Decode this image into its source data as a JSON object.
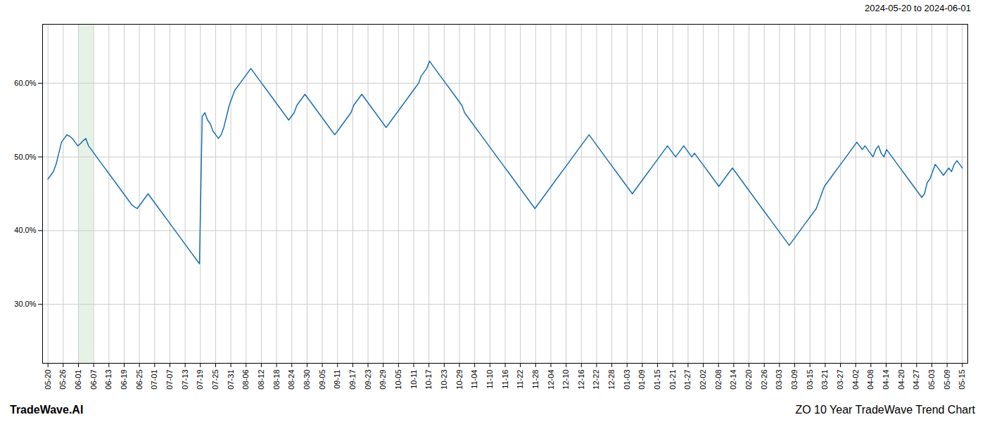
{
  "chart_data": {
    "type": "line",
    "title": "ZO 10 Year TradeWave Trend Chart",
    "subtitle": "2024-05-20 to 2024-06-01",
    "annotations": [
      "TradeWave.AI"
    ],
    "color": "#1a6faf",
    "grid": true,
    "xlim": [
      -2,
      340
    ],
    "xticks": [
      {
        "value": 0,
        "label": "05-20"
      },
      {
        "value": 5.63,
        "label": "05-26"
      },
      {
        "value": 11.27,
        "label": "06-01"
      },
      {
        "value": 16.9,
        "label": "06-07"
      },
      {
        "value": 22.53,
        "label": "06-13"
      },
      {
        "value": 28.17,
        "label": "06-19"
      },
      {
        "value": 33.8,
        "label": "06-25"
      },
      {
        "value": 39.43,
        "label": "07-01"
      },
      {
        "value": 45.07,
        "label": "07-07"
      },
      {
        "value": 50.7,
        "label": "07-13"
      },
      {
        "value": 56.33,
        "label": "07-19"
      },
      {
        "value": 61.97,
        "label": "07-25"
      },
      {
        "value": 67.6,
        "label": "07-31"
      },
      {
        "value": 73.23,
        "label": "08-06"
      },
      {
        "value": 78.87,
        "label": "08-12"
      },
      {
        "value": 84.5,
        "label": "08-18"
      },
      {
        "value": 90.13,
        "label": "08-24"
      },
      {
        "value": 95.77,
        "label": "08-30"
      },
      {
        "value": 101.4,
        "label": "09-05"
      },
      {
        "value": 107.03,
        "label": "09-11"
      },
      {
        "value": 112.67,
        "label": "09-17"
      },
      {
        "value": 118.3,
        "label": "09-23"
      },
      {
        "value": 123.93,
        "label": "09-29"
      },
      {
        "value": 129.57,
        "label": "10-05"
      },
      {
        "value": 135.2,
        "label": "10-11"
      },
      {
        "value": 140.83,
        "label": "10-17"
      },
      {
        "value": 146.47,
        "label": "10-23"
      },
      {
        "value": 152.1,
        "label": "10-29"
      },
      {
        "value": 157.73,
        "label": "11-04"
      },
      {
        "value": 163.37,
        "label": "11-10"
      },
      {
        "value": 169,
        "label": "11-16"
      },
      {
        "value": 174.63,
        "label": "11-22"
      },
      {
        "value": 180.27,
        "label": "11-28"
      },
      {
        "value": 185.9,
        "label": "12-04"
      },
      {
        "value": 191.53,
        "label": "12-10"
      },
      {
        "value": 197.17,
        "label": "12-16"
      },
      {
        "value": 202.8,
        "label": "12-22"
      },
      {
        "value": 208.43,
        "label": "12-28"
      },
      {
        "value": 214.07,
        "label": "01-03"
      },
      {
        "value": 219.7,
        "label": "01-09"
      },
      {
        "value": 225.33,
        "label": "01-15"
      },
      {
        "value": 230.97,
        "label": "01-21"
      },
      {
        "value": 236.6,
        "label": "01-27"
      },
      {
        "value": 242.23,
        "label": "02-02"
      },
      {
        "value": 247.87,
        "label": "02-08"
      },
      {
        "value": 253.5,
        "label": "02-14"
      },
      {
        "value": 259.13,
        "label": "02-20"
      },
      {
        "value": 264.77,
        "label": "02-26"
      },
      {
        "value": 270.4,
        "label": "03-03"
      },
      {
        "value": 276.03,
        "label": "03-09"
      },
      {
        "value": 281.67,
        "label": "03-15"
      },
      {
        "value": 287.3,
        "label": "03-21"
      },
      {
        "value": 292.93,
        "label": "03-27"
      },
      {
        "value": 298.57,
        "label": "04-02"
      },
      {
        "value": 304.2,
        "label": "04-08"
      },
      {
        "value": 309.83,
        "label": "04-14"
      },
      {
        "value": 315.47,
        "label": "04-20"
      },
      {
        "value": 321.1,
        "label": "04-27"
      },
      {
        "value": 326.73,
        "label": "05-03"
      },
      {
        "value": 332.37,
        "label": "05-09"
      },
      {
        "value": 338,
        "label": "05-15"
      }
    ],
    "ylim": [
      22,
      68
    ],
    "yticks": [
      {
        "value": 30,
        "label": "30.0%"
      },
      {
        "value": 40,
        "label": "40.0%"
      },
      {
        "value": 50,
        "label": "50.0%"
      },
      {
        "value": 60,
        "label": "60.0%"
      }
    ],
    "span": {
      "x": [
        11.27,
        16.9
      ],
      "color": "#d6ead6"
    },
    "values": [
      47.0,
      47.5,
      48.0,
      49.0,
      50.5,
      52.0,
      52.5,
      53.0,
      52.8,
      52.5,
      52.0,
      51.5,
      51.8,
      52.2,
      52.5,
      51.5,
      51.0,
      50.5,
      50.0,
      49.5,
      49.0,
      48.5,
      48.0,
      47.5,
      47.0,
      46.5,
      46.0,
      45.5,
      45.0,
      44.5,
      44.0,
      43.5,
      43.2,
      43.0,
      43.5,
      44.0,
      44.5,
      45.0,
      44.5,
      44.0,
      43.5,
      43.0,
      42.5,
      42.0,
      41.5,
      41.0,
      40.5,
      40.0,
      39.5,
      39.0,
      38.5,
      38.0,
      37.5,
      37.0,
      36.5,
      36.0,
      35.5,
      55.5,
      56.0,
      55.0,
      54.5,
      53.5,
      53.0,
      52.5,
      53.0,
      54.0,
      55.5,
      57.0,
      58.0,
      59.0,
      59.5,
      60.0,
      60.5,
      61.0,
      61.5,
      62.0,
      61.5,
      61.0,
      60.5,
      60.0,
      59.5,
      59.0,
      58.5,
      58.0,
      57.5,
      57.0,
      56.5,
      56.0,
      55.5,
      55.0,
      55.5,
      56.0,
      57.0,
      57.5,
      58.0,
      58.5,
      58.0,
      57.5,
      57.0,
      56.5,
      56.0,
      55.5,
      55.0,
      54.5,
      54.0,
      53.5,
      53.0,
      53.5,
      54.0,
      54.5,
      55.0,
      55.5,
      56.0,
      57.0,
      57.5,
      58.0,
      58.5,
      58.0,
      57.5,
      57.0,
      56.5,
      56.0,
      55.5,
      55.0,
      54.5,
      54.0,
      54.5,
      55.0,
      55.5,
      56.0,
      56.5,
      57.0,
      57.5,
      58.0,
      58.5,
      59.0,
      59.5,
      60.0,
      61.0,
      61.5,
      62.0,
      63.0,
      62.5,
      62.0,
      61.5,
      61.0,
      60.5,
      60.0,
      59.5,
      59.0,
      58.5,
      58.0,
      57.5,
      57.0,
      56.0,
      55.5,
      55.0,
      54.5,
      54.0,
      53.5,
      53.0,
      52.5,
      52.0,
      51.5,
      51.0,
      50.5,
      50.0,
      49.5,
      49.0,
      48.5,
      48.0,
      47.5,
      47.0,
      46.5,
      46.0,
      45.5,
      45.0,
      44.5,
      44.0,
      43.5,
      43.0,
      43.5,
      44.0,
      44.5,
      45.0,
      45.5,
      46.0,
      46.5,
      47.0,
      47.5,
      48.0,
      48.5,
      49.0,
      49.5,
      50.0,
      50.5,
      51.0,
      51.5,
      52.0,
      52.5,
      53.0,
      52.5,
      52.0,
      51.5,
      51.0,
      50.5,
      50.0,
      49.5,
      49.0,
      48.5,
      48.0,
      47.5,
      47.0,
      46.5,
      46.0,
      45.5,
      45.0,
      45.5,
      46.0,
      46.5,
      47.0,
      47.5,
      48.0,
      48.5,
      49.0,
      49.5,
      50.0,
      50.5,
      51.0,
      51.5,
      51.0,
      50.5,
      50.0,
      50.5,
      51.0,
      51.5,
      51.0,
      50.5,
      50.0,
      50.5,
      50.0,
      49.5,
      49.0,
      48.5,
      48.0,
      47.5,
      47.0,
      46.5,
      46.0,
      46.5,
      47.0,
      47.5,
      48.0,
      48.5,
      48.0,
      47.5,
      47.0,
      46.5,
      46.0,
      45.5,
      45.0,
      44.5,
      44.0,
      43.5,
      43.0,
      42.5,
      42.0,
      41.5,
      41.0,
      40.5,
      40.0,
      39.5,
      39.0,
      38.5,
      38.0,
      38.5,
      39.0,
      39.5,
      40.0,
      40.5,
      41.0,
      41.5,
      42.0,
      42.5,
      43.0,
      44.0,
      45.0,
      46.0,
      46.5,
      47.0,
      47.5,
      48.0,
      48.5,
      49.0,
      49.5,
      50.0,
      50.5,
      51.0,
      51.5,
      52.0,
      51.5,
      51.0,
      51.5,
      51.0,
      50.5,
      50.0,
      51.0,
      51.5,
      50.5,
      50.0,
      51.0,
      50.5,
      50.0,
      49.5,
      49.0,
      48.5,
      48.0,
      47.5,
      47.0,
      46.5,
      46.0,
      45.5,
      45.0,
      44.5,
      45.0,
      46.5,
      47.0,
      48.0,
      49.0,
      48.5,
      48.0,
      47.5,
      48.0,
      48.5,
      48.0,
      49.0,
      49.5,
      49.0,
      48.5
    ]
  }
}
